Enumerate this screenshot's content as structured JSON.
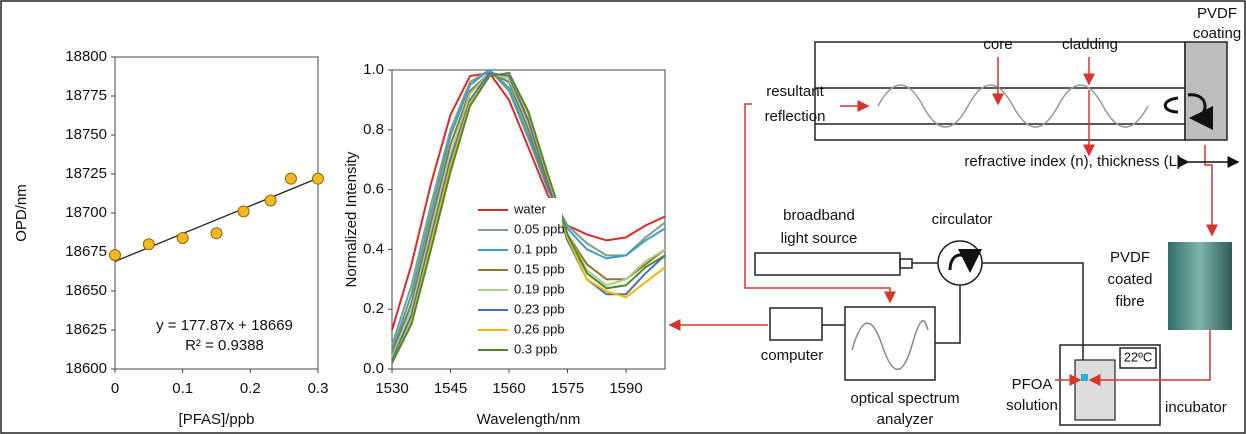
{
  "chart_data": [
    {
      "type": "scatter",
      "x_label": "[PFAS]/ppb",
      "y_label": "OPD/nm",
      "x": [
        0,
        0.05,
        0.1,
        0.15,
        0.19,
        0.23,
        0.26,
        0.3
      ],
      "values": [
        18673,
        18680,
        18684,
        18687,
        18701,
        18708,
        18722,
        18722
      ],
      "color": "#f5b820",
      "fit": {
        "slope": 177.87,
        "intercept": 18669
      },
      "annotations": [
        "y = 177.87x + 18669",
        "R² = 0.9388"
      ],
      "xlim": [
        0,
        0.3
      ],
      "xticks": [
        0,
        0.1,
        0.2,
        0.3
      ],
      "ylim": [
        18600,
        18800
      ],
      "yticks": [
        18600,
        18625,
        18650,
        18675,
        18700,
        18725,
        18750,
        18775,
        18800
      ]
    },
    {
      "type": "line",
      "x_label": "Wavelength/nm",
      "y_label": "Normalized Intensity",
      "x": [
        1530,
        1535,
        1540,
        1545,
        1550,
        1555,
        1560,
        1565,
        1570,
        1575,
        1580,
        1585,
        1590,
        1595,
        1600
      ],
      "series": [
        {
          "name": "water",
          "color": "#e02828",
          "values": [
            0.13,
            0.35,
            0.62,
            0.85,
            0.98,
            0.99,
            0.9,
            0.74,
            0.58,
            0.48,
            0.45,
            0.43,
            0.44,
            0.48,
            0.51
          ]
        },
        {
          "name": "0.05 ppb",
          "color": "#7f9f86",
          "values": [
            0.08,
            0.28,
            0.55,
            0.8,
            0.96,
            1.0,
            0.93,
            0.77,
            0.6,
            0.48,
            0.42,
            0.38,
            0.38,
            0.44,
            0.49
          ]
        },
        {
          "name": "0.1 ppb",
          "color": "#3aa0c8",
          "values": [
            0.06,
            0.25,
            0.52,
            0.78,
            0.95,
            1.0,
            0.94,
            0.78,
            0.6,
            0.47,
            0.4,
            0.37,
            0.38,
            0.43,
            0.47
          ]
        },
        {
          "name": "0.15 ppb",
          "color": "#8b7a2a",
          "values": [
            0.05,
            0.22,
            0.49,
            0.75,
            0.93,
            0.99,
            0.96,
            0.8,
            0.61,
            0.45,
            0.35,
            0.3,
            0.3,
            0.35,
            0.4
          ]
        },
        {
          "name": "0.19 ppb",
          "color": "#a6d08a",
          "values": [
            0.04,
            0.2,
            0.46,
            0.72,
            0.92,
            0.99,
            0.97,
            0.82,
            0.62,
            0.45,
            0.33,
            0.28,
            0.3,
            0.36,
            0.4
          ]
        },
        {
          "name": "0.23 ppb",
          "color": "#4a6ec0",
          "values": [
            0.03,
            0.18,
            0.44,
            0.7,
            0.9,
            0.99,
            0.98,
            0.83,
            0.62,
            0.43,
            0.3,
            0.25,
            0.25,
            0.32,
            0.38
          ]
        },
        {
          "name": "0.26 ppb",
          "color": "#f5b800",
          "values": [
            0.02,
            0.16,
            0.42,
            0.68,
            0.89,
            0.98,
            0.99,
            0.85,
            0.64,
            0.44,
            0.3,
            0.26,
            0.24,
            0.29,
            0.34
          ]
        },
        {
          "name": "0.3 ppb",
          "color": "#4f8a2a",
          "values": [
            0.02,
            0.15,
            0.4,
            0.66,
            0.88,
            0.98,
            0.99,
            0.86,
            0.65,
            0.45,
            0.32,
            0.27,
            0.28,
            0.34,
            0.38
          ]
        }
      ],
      "xlim": [
        1530,
        1600
      ],
      "xticks": [
        1530,
        1545,
        1560,
        1575,
        1590
      ],
      "ylim": [
        0,
        1
      ],
      "yticks": [
        {
          "value": 0,
          "label": "0.0"
        },
        0.2,
        0.4,
        0.6,
        0.8,
        {
          "value": 1,
          "label": "1.0"
        }
      ]
    }
  ],
  "diagram": {
    "pvdf_coating": [
      "PVDF",
      "coating"
    ],
    "core": "core",
    "cladding": "cladding",
    "resultant_reflection": [
      "resultant",
      "reflection"
    ],
    "refractive_index": "refractive index (n), thickness (L)",
    "light_source": [
      "broadband",
      "light source"
    ],
    "circulator": "circulator",
    "coated_fibre": [
      "PVDF",
      "coated",
      "fibre"
    ],
    "computer": "computer",
    "osa": [
      "optical spectrum",
      "analyzer"
    ],
    "temperature": "22ºC",
    "pfoa_solution": [
      "PFOA",
      "solution"
    ],
    "incubator": "incubator"
  }
}
